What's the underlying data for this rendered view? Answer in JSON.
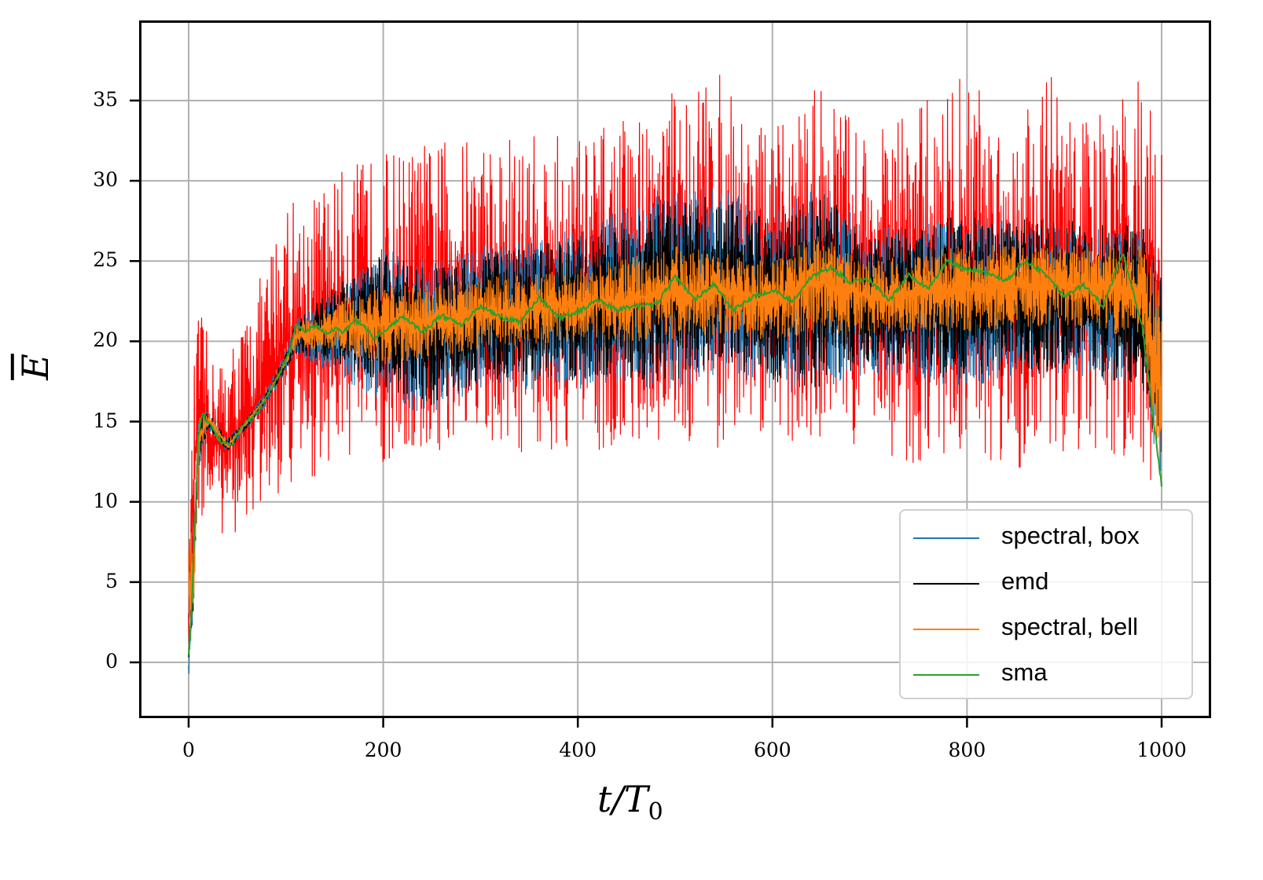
{
  "chart_data": {
    "type": "line",
    "title": "",
    "xlabel": "t/T_0",
    "ylabel": "E (overline)",
    "xlim": [
      -50,
      1050
    ],
    "ylim": [
      -3.5,
      40
    ],
    "xticks": [
      0,
      200,
      400,
      600,
      800,
      1000
    ],
    "yticks": [
      0,
      5,
      10,
      15,
      20,
      25,
      30,
      35
    ],
    "grid": true,
    "legend_position": "lower right",
    "series": [
      {
        "name": "spectral, box",
        "color": "#1f77b4",
        "envelope_x": [
          0,
          5,
          10,
          20,
          40,
          60,
          80,
          100,
          110,
          150,
          200,
          250,
          300,
          400,
          500,
          550,
          600,
          650,
          700,
          800,
          900,
          980,
          1000
        ],
        "envelope_low": [
          -1.3,
          3,
          12,
          14.5,
          13,
          14.5,
          16,
          18,
          19,
          18,
          16,
          15.5,
          17,
          17,
          17,
          18,
          17,
          16.5,
          18,
          17,
          18,
          17,
          11
        ],
        "envelope_high": [
          0.5,
          8,
          15.5,
          15.7,
          14,
          15.3,
          17,
          19.5,
          21.5,
          23,
          26,
          25,
          26,
          27,
          30,
          29.5,
          28,
          30,
          27,
          28,
          27,
          27,
          24
        ]
      },
      {
        "name": "emd",
        "color": "#000000",
        "envelope_x": [
          0,
          5,
          10,
          20,
          40,
          60,
          80,
          100,
          110,
          150,
          200,
          250,
          300,
          400,
          500,
          550,
          600,
          650,
          700,
          800,
          900,
          980,
          1000
        ],
        "envelope_low": [
          0,
          3,
          12,
          14.6,
          13.1,
          14.6,
          16.2,
          18.2,
          19.2,
          18.5,
          17,
          16,
          17.5,
          17.5,
          17.5,
          18.5,
          17.5,
          17,
          18.5,
          17.5,
          18.2,
          17.2,
          11.5
        ],
        "envelope_high": [
          0.5,
          7.5,
          15.4,
          15.6,
          13.9,
          15.2,
          16.8,
          19.3,
          21.2,
          23.5,
          25.5,
          24.5,
          25.5,
          26.5,
          29,
          29,
          27.5,
          29.5,
          26.5,
          28,
          27.5,
          27.5,
          24
        ]
      },
      {
        "name": "spectral, bell",
        "color": "#ff7f0e",
        "envelope_x": [
          0,
          5,
          10,
          20,
          40,
          60,
          80,
          100,
          110,
          150,
          200,
          250,
          300,
          400,
          500,
          550,
          600,
          650,
          700,
          800,
          900,
          980,
          1000
        ],
        "envelope_low": [
          0,
          3,
          12.5,
          14.8,
          13.2,
          14.8,
          16.5,
          18.5,
          19.5,
          19.5,
          18.5,
          19,
          19.5,
          20,
          20,
          20.5,
          20,
          20.5,
          20.5,
          20.5,
          21,
          20,
          10.5
        ],
        "envelope_high": [
          9.5,
          7,
          15.3,
          15.5,
          13.8,
          15.1,
          16.6,
          19,
          21,
          22.5,
          23.5,
          23.5,
          24,
          24.5,
          26,
          25.5,
          25,
          27,
          25,
          26,
          26,
          26,
          23
        ]
      },
      {
        "name": "sma",
        "color": "#2ca02c",
        "x": [
          0,
          3,
          6,
          10,
          14,
          20,
          30,
          38,
          45,
          55,
          65,
          75,
          85,
          95,
          105,
          110,
          120,
          130,
          140,
          150,
          160,
          170,
          180,
          190,
          200,
          220,
          240,
          260,
          280,
          300,
          320,
          340,
          360,
          380,
          400,
          420,
          440,
          460,
          480,
          500,
          520,
          540,
          560,
          580,
          600,
          620,
          640,
          660,
          680,
          700,
          720,
          740,
          760,
          780,
          800,
          820,
          840,
          860,
          880,
          900,
          920,
          940,
          960,
          980,
          1000
        ],
        "y": [
          0.5,
          3,
          8,
          14,
          15.5,
          15,
          14,
          13.5,
          13.7,
          14.8,
          15.2,
          16,
          17,
          18.2,
          19.5,
          21,
          20.6,
          21,
          20.5,
          20.8,
          20.6,
          21.3,
          21,
          20.2,
          20.6,
          21.6,
          20.6,
          21.6,
          21,
          22.2,
          21.5,
          21.2,
          22.7,
          21.5,
          21.8,
          22.6,
          22,
          22.2,
          22.3,
          24,
          22.6,
          23.6,
          21.9,
          22.8,
          23.2,
          22.5,
          24,
          24.6,
          23.7,
          23.8,
          22.5,
          24.2,
          23.3,
          25,
          24.5,
          24.3,
          23.8,
          25,
          24.2,
          22.8,
          23.5,
          22.2,
          25.5,
          21,
          11
        ]
      },
      {
        "name": "(unlabeled red)",
        "color": "#ff0000",
        "envelope_x": [
          0,
          5,
          10,
          15,
          25,
          40,
          60,
          80,
          100,
          110,
          150,
          200,
          250,
          300,
          400,
          450,
          500,
          540,
          600,
          650,
          700,
          750,
          800,
          850,
          880,
          900,
          950,
          980,
          1000
        ],
        "envelope_low": [
          0,
          3,
          9,
          8.5,
          8.5,
          7.5,
          8.5,
          9.5,
          10.5,
          10.5,
          12.5,
          12,
          12.5,
          13,
          13,
          13.5,
          14,
          13,
          14,
          13.5,
          13.5,
          12,
          13,
          12,
          12.5,
          13,
          12,
          11.5,
          11
        ],
        "envelope_high": [
          6,
          18,
          22,
          21.5,
          19,
          19.5,
          22,
          25,
          30,
          29,
          30.5,
          32,
          32.5,
          33,
          33,
          34,
          36,
          37,
          33,
          36.5,
          33,
          35,
          37,
          34,
          38,
          35,
          34,
          37.5,
          33
        ]
      }
    ]
  },
  "axes": {
    "xlabel_text": "t/T",
    "xlabel_sub": "0",
    "ylabel_text": "E",
    "xtick_labels": [
      "0",
      "200",
      "400",
      "600",
      "800",
      "1000"
    ],
    "ytick_labels": [
      "0",
      "5",
      "10",
      "15",
      "20",
      "25",
      "30",
      "35"
    ]
  },
  "legend": {
    "items": [
      {
        "label": "spectral, box",
        "color": "#1f77b4"
      },
      {
        "label": "emd",
        "color": "#000000"
      },
      {
        "label": "spectral, bell",
        "color": "#ff7f0e"
      },
      {
        "label": "sma",
        "color": "#2ca02c"
      }
    ]
  }
}
